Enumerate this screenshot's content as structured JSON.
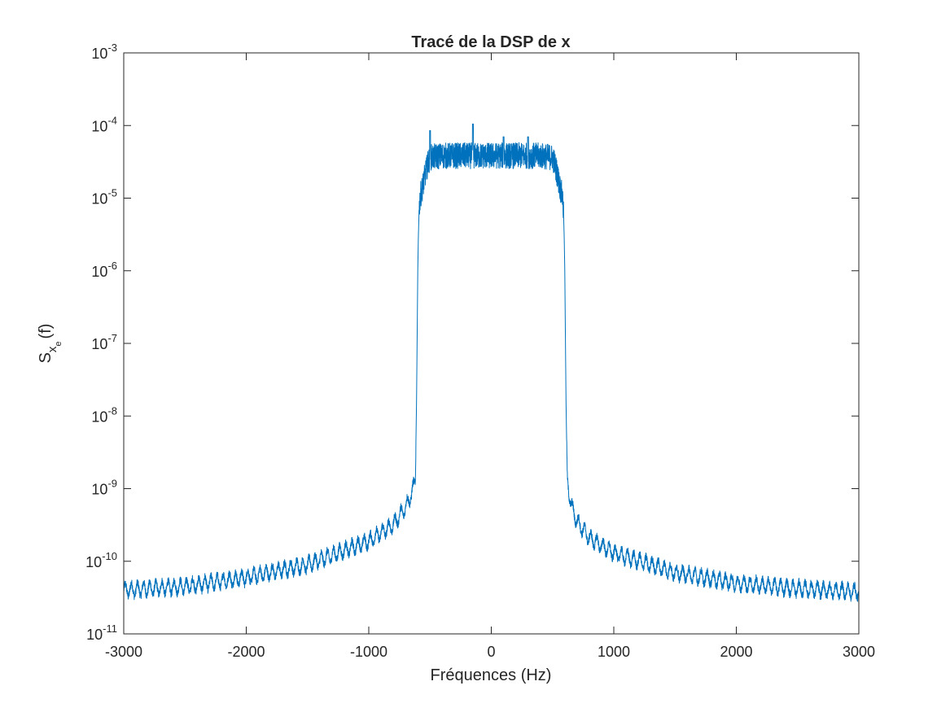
{
  "chart_data": {
    "type": "line",
    "title": "Tracé de la DSP de x",
    "xlabel": "Fréquences (Hz)",
    "ylabel": {
      "base": "S",
      "sub1": "x",
      "sub2": "e",
      "suffix": "(f)"
    },
    "xlim": [
      -3000,
      3000
    ],
    "ylim": [
      1e-11,
      0.001
    ],
    "yscale": "log",
    "grid": false,
    "x_ticks": [
      "-3000",
      "-2000",
      "-1000",
      "0",
      "1000",
      "2000",
      "3000"
    ],
    "y_ticks": [
      {
        "value": 1e-11,
        "base": "10",
        "exp": "-11"
      },
      {
        "value": 1e-10,
        "base": "10",
        "exp": "-10"
      },
      {
        "value": 1e-09,
        "base": "10",
        "exp": "-9"
      },
      {
        "value": 1e-08,
        "base": "10",
        "exp": "-8"
      },
      {
        "value": 1e-07,
        "base": "10",
        "exp": "-7"
      },
      {
        "value": 1e-06,
        "base": "10",
        "exp": "-6"
      },
      {
        "value": 1e-05,
        "base": "10",
        "exp": "-5"
      },
      {
        "value": 0.0001,
        "base": "10",
        "exp": "-4"
      },
      {
        "value": 0.001,
        "base": "10",
        "exp": "-3"
      }
    ],
    "series": [
      {
        "color": "#0072BD",
        "envelope": {
          "x": [
            -3000,
            -2500,
            -2000,
            -1500,
            -1000,
            -800,
            -700,
            -650,
            -620,
            -610,
            -600,
            -595,
            -590,
            -585,
            -580,
            -560,
            -550,
            -540,
            -520,
            -500,
            -400,
            -200,
            0,
            200,
            400,
            500,
            520,
            540,
            550,
            560,
            580,
            585,
            590,
            595,
            600,
            610,
            620,
            650,
            700,
            800,
            1000,
            1500,
            2000,
            2500,
            3000
          ],
          "y": [
            4e-11,
            4.5e-11,
            6e-11,
            9e-11,
            1.9e-10,
            3.2e-10,
            5.5e-10,
            8.5e-10,
            1.3e-09,
            1.6e-08,
            1e-06,
            3e-06,
            6e-06,
            9e-06,
            1.1e-05,
            1.5e-05,
            1.8e-05,
            2.2e-05,
            3e-05,
            3.8e-05,
            4e-05,
            4e-05,
            4e-05,
            4e-05,
            4e-05,
            3.8e-05,
            3e-05,
            2.2e-05,
            1.8e-05,
            1.5e-05,
            1.1e-05,
            9e-06,
            6e-06,
            3e-06,
            1e-06,
            1.6e-08,
            1.4e-09,
            6e-10,
            3.5e-10,
            2.1e-10,
            1.3e-10,
            7e-11,
            5e-11,
            4.2e-11,
            3.8e-11
          ]
        },
        "peaks": [
          {
            "x": -500,
            "y": 8.5e-05
          },
          {
            "x": -150,
            "y": 0.000105
          },
          {
            "x": 100,
            "y": 7e-05
          },
          {
            "x": 300,
            "y": 7e-05
          }
        ],
        "ripple_hz": 50,
        "noise_decades": 0.09,
        "band_noise_decades": 0.18
      }
    ]
  }
}
